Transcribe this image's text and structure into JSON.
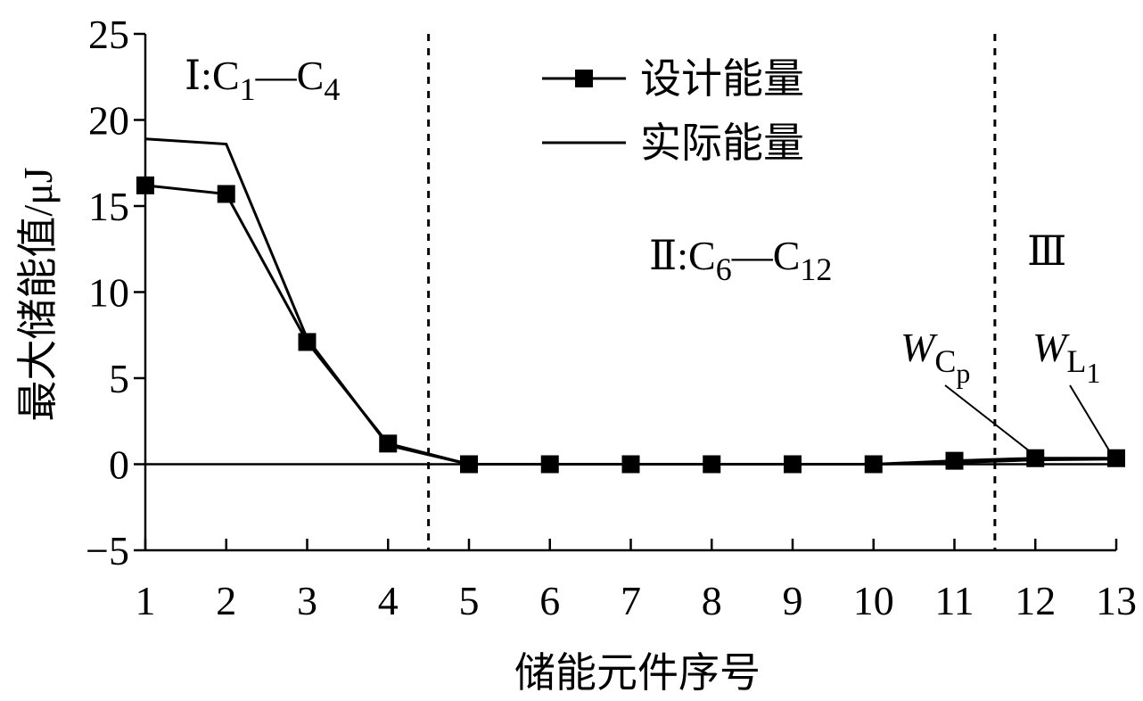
{
  "chart_data": {
    "type": "line",
    "x_label": "储能元件序号",
    "y_label": "最大储能值/μJ",
    "x": [
      1,
      2,
      3,
      4,
      5,
      6,
      7,
      8,
      9,
      10,
      11,
      12,
      13
    ],
    "series": [
      {
        "name": "设计能量",
        "color": "#000000",
        "marker": "square",
        "values": [
          16.2,
          15.7,
          7.1,
          1.2,
          0,
          0,
          0,
          0,
          0,
          0,
          0.2,
          0.35,
          0.35
        ]
      },
      {
        "name": "实际能量",
        "color": "#000000",
        "marker": "none",
        "values": [
          18.9,
          18.6,
          7.3,
          1.1,
          0,
          0,
          0,
          0,
          0,
          0,
          0.1,
          0.25,
          0.3
        ]
      }
    ],
    "xlim": [
      1,
      13
    ],
    "xticks": [
      1,
      2,
      3,
      4,
      5,
      6,
      7,
      8,
      9,
      10,
      11,
      12,
      13
    ],
    "ylim": [
      -5,
      25
    ],
    "yticks": [
      {
        "value": -5,
        "label": "−5"
      },
      0,
      5,
      10,
      15,
      20,
      25
    ],
    "dividers": [
      4.5,
      11.5
    ],
    "legend": "top",
    "annotations": [
      {
        "parts": [
          {
            "text": "Ⅰ:C"
          },
          {
            "text": "1",
            "sub": 1
          },
          {
            "text": "—C"
          },
          {
            "text": "4",
            "sub": 1
          }
        ]
      },
      {
        "parts": [
          {
            "text": "Ⅱ:C"
          },
          {
            "text": "6",
            "sub": 1
          },
          {
            "text": "—C"
          },
          {
            "text": "12",
            "sub": 1
          }
        ]
      },
      {
        "parts": [
          {
            "text": "Ⅲ"
          }
        ]
      },
      {
        "parts": [
          {
            "text": "W",
            "italic": true
          },
          {
            "text": "C",
            "sub": 1
          },
          {
            "text": "p",
            "sub": 2
          }
        ]
      },
      {
        "parts": [
          {
            "text": "W",
            "italic": true
          },
          {
            "text": "L",
            "sub": 1
          },
          {
            "text": "1",
            "sub": 2
          }
        ]
      }
    ]
  }
}
